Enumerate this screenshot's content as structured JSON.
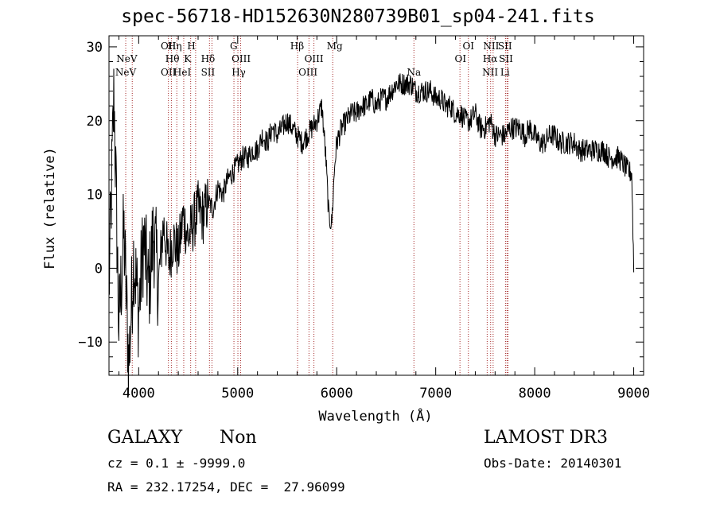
{
  "title": "spec-56718-HD152630N280739B01_sp04-241.fits",
  "info": {
    "class_label": "GALAXY",
    "subclass_label": "Non",
    "cz_line": "cz = 0.1 ± -9999.0",
    "radec_line": "RA = 232.17254, DEC =  27.96099",
    "survey": "LAMOST DR3",
    "obs_date": "Obs-Date: 20140301"
  },
  "chart_data": {
    "type": "line",
    "title": "spec-56718-HD152630N280739B01_sp04-241.fits",
    "xlabel": "Wavelength (Å)",
    "ylabel": "Flux (relative)",
    "xlim": [
      3700,
      9100
    ],
    "ylim": [
      -14.5,
      31.5
    ],
    "xticks": [
      4000,
      5000,
      6000,
      7000,
      8000,
      9000
    ],
    "yticks": [
      -10,
      0,
      10,
      20,
      30
    ],
    "line_color": "#000000",
    "marker_color": "#a52a2a",
    "spectrum": {
      "name": "Flux",
      "x": [
        3700,
        3750,
        3800,
        3850,
        3900,
        3950,
        4000,
        4050,
        4100,
        4150,
        4200,
        4250,
        4300,
        4350,
        4400,
        4450,
        4500,
        4550,
        4600,
        4650,
        4700,
        4750,
        4800,
        4850,
        4900,
        4950,
        5000,
        5050,
        5100,
        5150,
        5200,
        5250,
        5300,
        5350,
        5400,
        5450,
        5500,
        5550,
        5600,
        5650,
        5700,
        5750,
        5800,
        5850,
        5890,
        5920,
        5950,
        5980,
        6000,
        6050,
        6100,
        6150,
        6200,
        6250,
        6300,
        6350,
        6400,
        6450,
        6500,
        6550,
        6600,
        6650,
        6700,
        6750,
        6800,
        6850,
        6900,
        6950,
        7000,
        7050,
        7100,
        7150,
        7200,
        7250,
        7300,
        7350,
        7400,
        7450,
        7500,
        7550,
        7600,
        7650,
        7700,
        7750,
        7800,
        7850,
        7900,
        7950,
        8000,
        8050,
        8100,
        8150,
        8200,
        8250,
        8300,
        8350,
        8400,
        8450,
        8500,
        8550,
        8600,
        8650,
        8700,
        8750,
        8800,
        8850,
        8900,
        8950,
        8980,
        9000
      ],
      "y": [
        -3,
        24,
        -8,
        5,
        -13,
        2,
        -6,
        4,
        -3,
        5,
        -2,
        6,
        1,
        4,
        2,
        7,
        4,
        6,
        8,
        7,
        9,
        8,
        11,
        10,
        12,
        13,
        14,
        15,
        15,
        16,
        16,
        18,
        17,
        19,
        18,
        19,
        20,
        19,
        18,
        17,
        18,
        19,
        20,
        22,
        15,
        7,
        6,
        14,
        17,
        19,
        20,
        21,
        21,
        22,
        22,
        23,
        22,
        23,
        23,
        24,
        25,
        25,
        25,
        25,
        24,
        24,
        24,
        24,
        23,
        23,
        22,
        22,
        21,
        21,
        20,
        20,
        21,
        19,
        19,
        20,
        18,
        18,
        18,
        19,
        19,
        19,
        18,
        19,
        18,
        17,
        17,
        18,
        18,
        17,
        17,
        17,
        17,
        16,
        16,
        16,
        16,
        16,
        16,
        15,
        15,
        15,
        14,
        13,
        13,
        0
      ]
    },
    "lines": [
      {
        "label": "NeV",
        "x": 3869,
        "row": 2
      },
      {
        "label": "NeV",
        "x": 3880,
        "row": 1
      },
      {
        "label": "OII",
        "x": 4300,
        "row": 0
      },
      {
        "label": "Hη",
        "x": 4365,
        "row": 0
      },
      {
        "label": "H",
        "x": 4532,
        "row": 0
      },
      {
        "label": "Hθ",
        "x": 4340,
        "row": 1
      },
      {
        "label": "K",
        "x": 4493,
        "row": 1
      },
      {
        "label": "OII",
        "x": 4300,
        "row": 2
      },
      {
        "label": "HeI",
        "x": 4440,
        "row": 2
      },
      {
        "label": "Hδ",
        "x": 4700,
        "row": 1
      },
      {
        "label": "SII",
        "x": 4700,
        "row": 2
      },
      {
        "label": "G",
        "x": 4960,
        "row": 0
      },
      {
        "label": "OIII",
        "x": 5035,
        "row": 1
      },
      {
        "label": "Hγ",
        "x": 5010,
        "row": 2
      },
      {
        "label": "Hβ",
        "x": 5600,
        "row": 0
      },
      {
        "label": "OIII",
        "x": 5770,
        "row": 1
      },
      {
        "label": "OIII",
        "x": 5710,
        "row": 2
      },
      {
        "label": "Mg",
        "x": 5980,
        "row": 0
      },
      {
        "label": "Na",
        "x": 6780,
        "row": 2
      },
      {
        "label": "OI",
        "x": 7330,
        "row": 0
      },
      {
        "label": "OI",
        "x": 7250,
        "row": 1
      },
      {
        "label": "NII",
        "x": 7560,
        "row": 0
      },
      {
        "label": "SII",
        "x": 7700,
        "row": 0
      },
      {
        "label": "Hα",
        "x": 7550,
        "row": 1
      },
      {
        "label": "SII",
        "x": 7710,
        "row": 1
      },
      {
        "label": "NII",
        "x": 7550,
        "row": 2
      },
      {
        "label": "Li",
        "x": 7700,
        "row": 2
      }
    ],
    "line_positions": [
      3869,
      3935,
      4300,
      4330,
      4385,
      4455,
      4525,
      4575,
      4715,
      4740,
      4962,
      5002,
      5030,
      5605,
      5720,
      5770,
      5960,
      6780,
      7245,
      7330,
      7520,
      7555,
      7580,
      7705,
      7720,
      7730
    ]
  }
}
